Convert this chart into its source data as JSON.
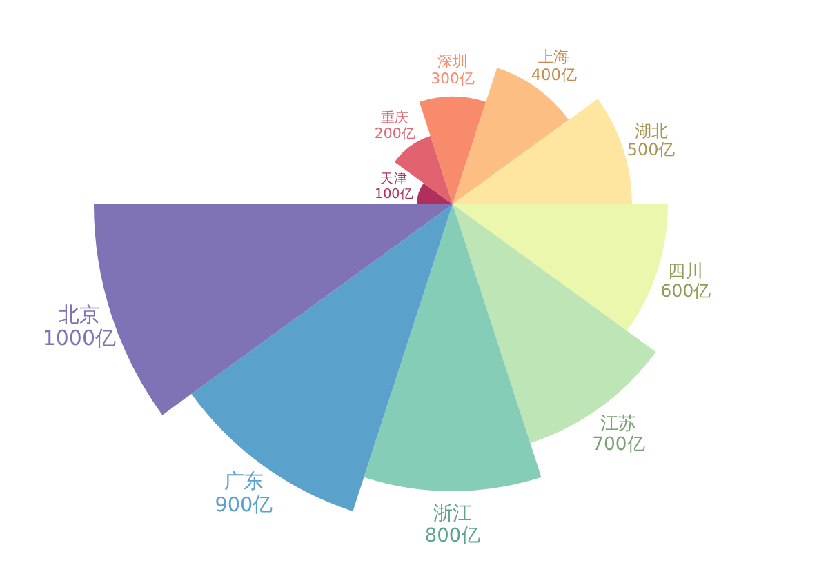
{
  "chart_data": {
    "type": "other",
    "categories": [
      "天津",
      "重庆",
      "深圳",
      "上海",
      "湖北",
      "四川",
      "江苏",
      "浙江",
      "广东",
      "北京"
    ],
    "values": [
      100,
      200,
      300,
      400,
      500,
      600,
      700,
      800,
      900,
      1000
    ],
    "value_labels": [
      "100亿",
      "200亿",
      "300亿",
      "400亿",
      "500亿",
      "600亿",
      "700亿",
      "800亿",
      "900亿",
      "1000亿"
    ],
    "colors": [
      "#b0305c",
      "#e0636f",
      "#f88b6b",
      "#fdbe83",
      "#fee6a0",
      "#ebf7ad",
      "#bde5b6",
      "#85cdb7",
      "#5aa1cb",
      "#7f72b5"
    ]
  }
}
